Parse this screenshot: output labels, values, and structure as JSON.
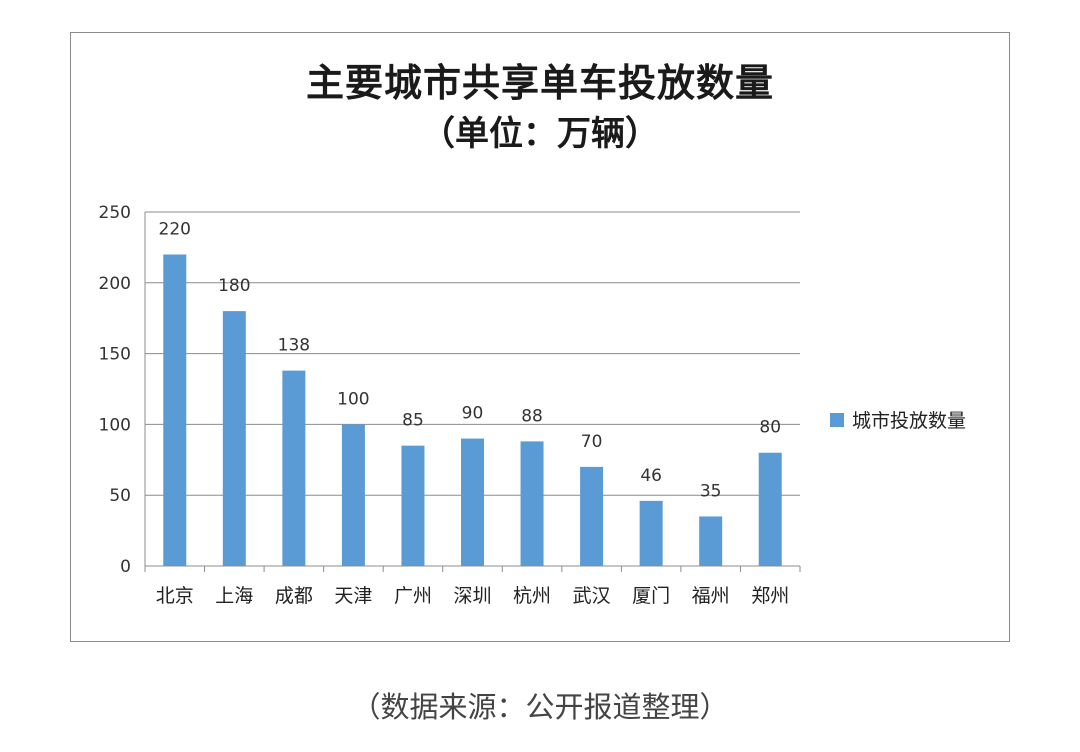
{
  "chart_data": {
    "type": "bar",
    "title": "主要城市共享单车投放数量",
    "subtitle": "（单位：万辆）",
    "categories": [
      "北京",
      "上海",
      "成都",
      "天津",
      "广州",
      "深圳",
      "杭州",
      "武汉",
      "厦门",
      "福州",
      "郑州"
    ],
    "series": [
      {
        "name": "城市投放数量",
        "values": [
          220,
          180,
          138,
          100,
          85,
          90,
          88,
          70,
          46,
          35,
          80
        ],
        "color": "#5b9bd5"
      }
    ],
    "yticks": [
      "0",
      "50",
      "100",
      "150",
      "200",
      "250"
    ],
    "ylim": [
      0,
      250
    ],
    "grid": true,
    "legend_position": "right",
    "data_labels": true
  },
  "source_note": "（数据来源：公开报道整理）"
}
